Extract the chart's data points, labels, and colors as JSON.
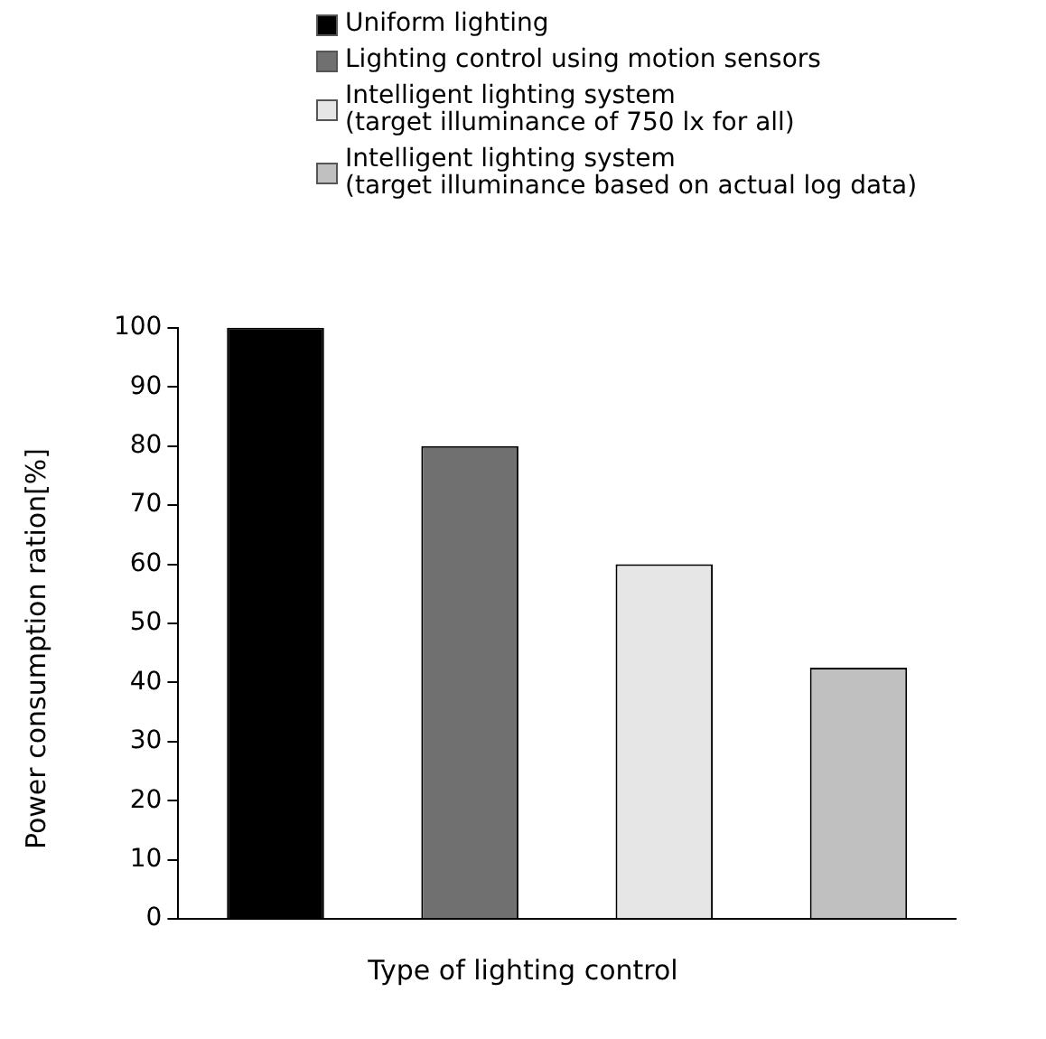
{
  "chart_data": {
    "type": "bar",
    "xlabel": "Type of lighting control",
    "ylabel": "Power consumption ration[%]",
    "categories": [
      null,
      null,
      null,
      null
    ],
    "series": [
      {
        "name": "Uniform lighting",
        "color": "#000000",
        "values": [
          100,
          null,
          null,
          null
        ]
      },
      {
        "name": "Lighting control using motion sensors",
        "color": "#707070",
        "values": [
          null,
          80,
          null,
          null
        ]
      },
      {
        "name": "Intelligent lighting system\n(target illuminance of 750 lx for all)",
        "color": "#e6e6e6",
        "values": [
          null,
          null,
          60,
          null
        ]
      },
      {
        "name": "Intelligent lighting system\n(target illuminance based on actual log data)",
        "color": "#c0c0c0",
        "values": [
          null,
          null,
          null,
          42.5
        ]
      }
    ],
    "ylim": [
      0,
      100
    ],
    "yticks": [
      0,
      10,
      20,
      30,
      40,
      50,
      60,
      70,
      80,
      90,
      100
    ],
    "grid": false,
    "legend": "top",
    "tick_labels": "y"
  }
}
